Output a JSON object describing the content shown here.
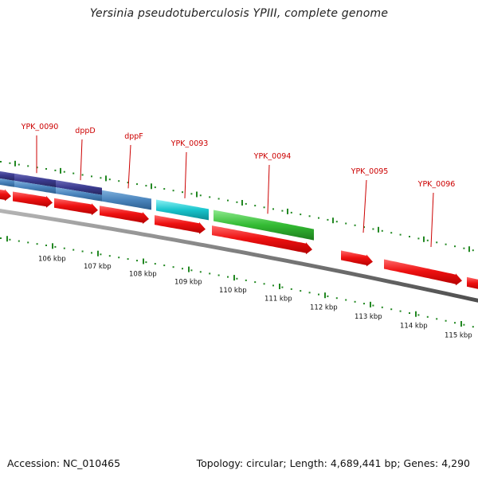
{
  "title": "Yersinia pseudotuberculosis YPIII, complete genome",
  "accession": "Accession: NC_010465",
  "summary": "Topology: circular; Length: 4,689,441 bp; Genes: 4,290",
  "colors": {
    "background": "#ffffff",
    "gene_label": "#cc0000",
    "label_line": "#cc0000",
    "tick": "#228822",
    "backbone": "#7a7a7a",
    "cds_red": "#ee1111",
    "track_navy": "#3b3b8f",
    "track_steelblue": "#4a84bc",
    "track_cyan": "#18c4cc",
    "track_green": "#33bb33",
    "text": "#111111"
  },
  "gene_labels": [
    "YPK_0090",
    "dppD",
    "dppF",
    "YPK_0093",
    "YPK_0094",
    "YPK_0095",
    "YPK_0096"
  ],
  "scale_labels": [
    "106 kbp",
    "107 kbp",
    "108 kbp",
    "109 kbp",
    "110 kbp",
    "111 kbp",
    "112 kbp",
    "113 kbp",
    "114 kbp",
    "115 kbp"
  ]
}
